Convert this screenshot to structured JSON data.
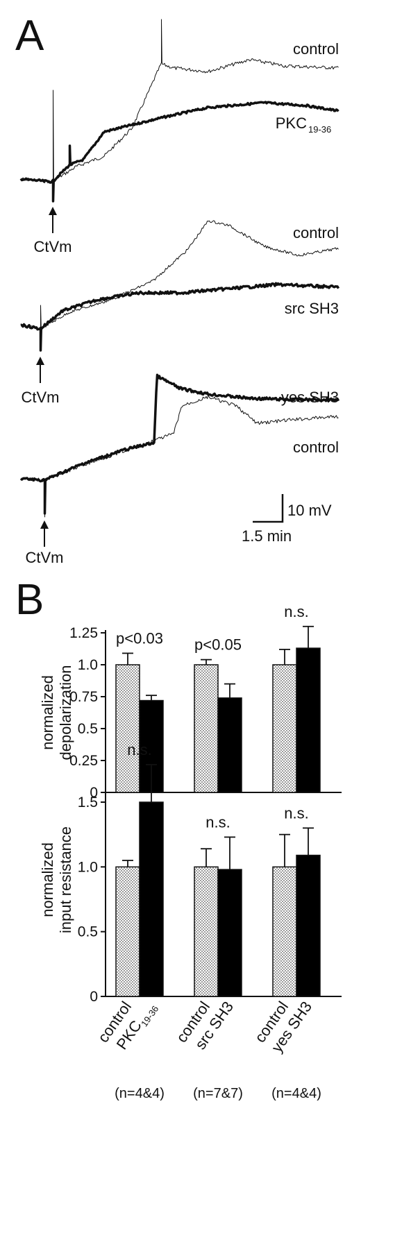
{
  "panel_a": {
    "letter": "A",
    "traces": [
      {
        "labels": [
          "control",
          "PKC",
          "19-36"
        ],
        "marker": "CtVm"
      },
      {
        "labels": [
          "control",
          "src SH3"
        ],
        "marker": "CtVm"
      },
      {
        "labels": [
          "yes SH3",
          "control"
        ],
        "marker": "CtVm"
      }
    ],
    "scale_bar": {
      "y_label": "10 mV",
      "x_label": "1.5 min"
    }
  },
  "panel_b": {
    "letter": "B"
  },
  "chart_data": [
    {
      "type": "bar",
      "ylabel": [
        "normalized",
        "depolarization"
      ],
      "ylim": [
        0,
        1.25
      ],
      "yticks": [
        "0",
        "0.25",
        "0.5",
        "0.75",
        "1.0",
        "1.25"
      ],
      "groups": [
        {
          "control": 1.0,
          "control_err": 0.09,
          "treatment": 0.72,
          "treatment_err": 0.04,
          "significance": "p<0.03"
        },
        {
          "control": 1.0,
          "control_err": 0.04,
          "treatment": 0.74,
          "treatment_err": 0.11,
          "significance": "p<0.05"
        },
        {
          "control": 1.0,
          "control_err": 0.12,
          "treatment": 1.13,
          "treatment_err": 0.17,
          "significance": "n.s."
        }
      ]
    },
    {
      "type": "bar",
      "ylabel": [
        "normalized",
        "input resistance"
      ],
      "ylim": [
        0,
        1.8
      ],
      "yticks": [
        "0",
        "0.5",
        "1.0",
        "1.5"
      ],
      "groups": [
        {
          "control": 1.0,
          "control_err": 0.05,
          "treatment": 1.5,
          "treatment_err": 0.29,
          "significance": "n.s."
        },
        {
          "control": 1.0,
          "control_err": 0.14,
          "treatment": 0.98,
          "treatment_err": 0.25,
          "significance": "n.s."
        },
        {
          "control": 1.0,
          "control_err": 0.25,
          "treatment": 1.09,
          "treatment_err": 0.21,
          "significance": "n.s."
        }
      ]
    }
  ],
  "x_groups": [
    {
      "control_label": "control",
      "treatment_label": "PKC",
      "treatment_sub": "19-36",
      "n": "(n=4&4)"
    },
    {
      "control_label": "control",
      "treatment_label": "src SH3",
      "treatment_sub": "",
      "n": "(n=7&7)"
    },
    {
      "control_label": "control",
      "treatment_label": "yes SH3",
      "treatment_sub": "",
      "n": "(n=4&4)"
    }
  ],
  "colors": {
    "control_fill": "#d6d6d6",
    "treatment_fill": "#000000",
    "ink": "#111111"
  }
}
